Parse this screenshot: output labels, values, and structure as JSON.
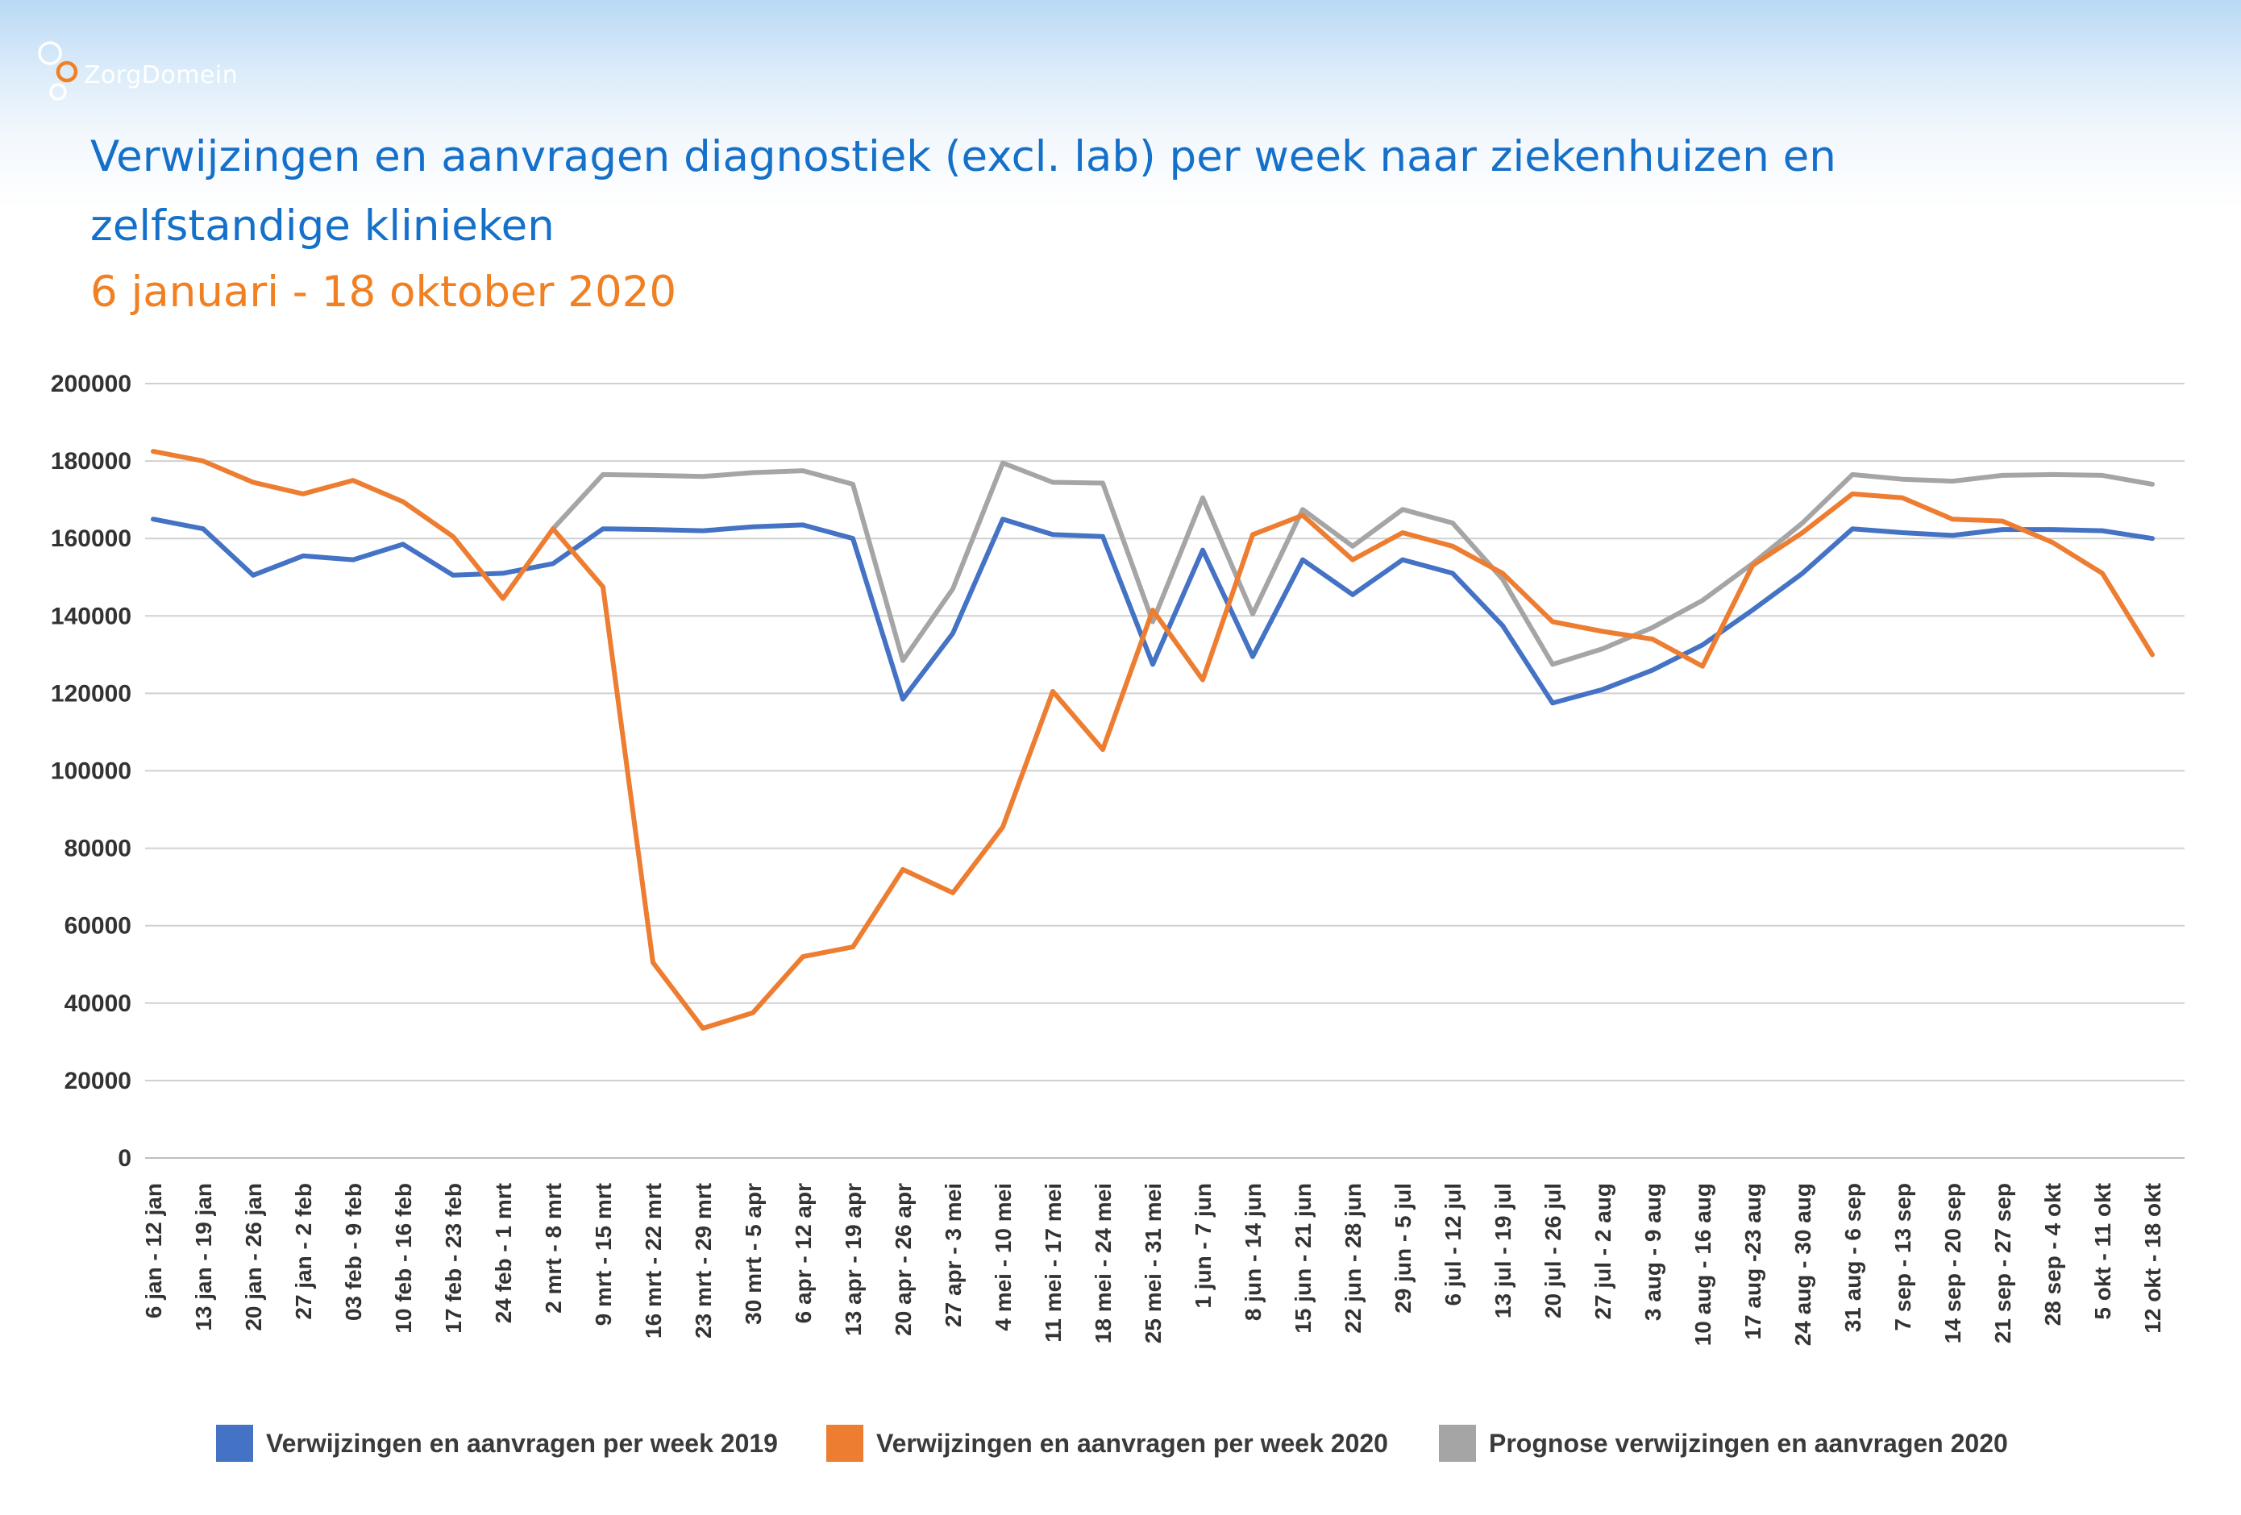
{
  "brand": {
    "name": "ZorgDomein",
    "accent": "#f08021"
  },
  "header": {
    "title_line1": "Verwijzingen en aanvragen diagnostiek (excl. lab) per week naar ziekenhuizen en",
    "title_line2": "zelfstandige klinieken",
    "subtitle": "6 januari - 18 oktober 2020",
    "title_color": "#1570c9",
    "subtitle_color": "#f08021"
  },
  "chart_data": {
    "type": "line",
    "title": "",
    "xlabel": "",
    "ylabel": "",
    "ylim": [
      0,
      200000
    ],
    "yticks": [
      0,
      20000,
      40000,
      60000,
      80000,
      100000,
      120000,
      140000,
      160000,
      180000,
      200000
    ],
    "grid": true,
    "legend_position": "bottom",
    "categories": [
      "6 jan - 12 jan",
      "13 jan - 19 jan",
      "20 jan - 26 jan",
      "27 jan - 2 feb",
      "03 feb - 9 feb",
      "10 feb - 16 feb",
      "17 feb - 23 feb",
      "24 feb - 1 mrt",
      "2 mrt - 8 mrt",
      "9 mrt - 15 mrt",
      "16 mrt - 22 mrt",
      "23 mrt - 29 mrt",
      "30 mrt - 5 apr",
      "6 apr - 12 apr",
      "13 apr - 19 apr",
      "20 apr - 26 apr",
      "27 apr - 3 mei",
      "4 mei - 10 mei",
      "11 mei - 17 mei",
      "18 mei - 24 mei",
      "25 mei - 31 mei",
      "1 jun - 7 jun",
      "8 jun - 14 jun",
      "15 jun - 21 jun",
      "22 jun - 28 jun",
      "29 jun - 5 jul",
      "6 jul - 12 jul",
      "13 jul - 19 jul",
      "20 jul - 26 jul",
      "27 jul - 2 aug",
      "3 aug - 9 aug",
      "10 aug - 16 aug",
      "17 aug -23 aug",
      "24 aug - 30 aug",
      "31 aug - 6 sep",
      "7 sep - 13 sep",
      "14 sep - 20 sep",
      "21 sep - 27 sep",
      "28 sep - 4 okt",
      "5 okt - 11 okt",
      "12 okt - 18 okt"
    ],
    "series": [
      {
        "name": "Verwijzingen en aanvragen per week 2019",
        "color": "#4472c4",
        "values": [
          165000,
          162500,
          150500,
          155500,
          154500,
          158500,
          150500,
          151000,
          153500,
          162500,
          162300,
          162000,
          163000,
          163500,
          160000,
          118500,
          135500,
          165000,
          161000,
          160500,
          127500,
          157000,
          129500,
          154500,
          145500,
          154500,
          151000,
          137500,
          117500,
          121000,
          126000,
          132500,
          141500,
          151000,
          162500,
          161500,
          160800,
          162300,
          162300,
          162000,
          160000
        ]
      },
      {
        "name": "Verwijzingen en aanvragen per week 2020",
        "color": "#ed7d31",
        "values": [
          182500,
          180000,
          174500,
          171500,
          175000,
          169500,
          160500,
          144500,
          162500,
          147500,
          50500,
          33500,
          37500,
          52000,
          54500,
          74500,
          68500,
          85500,
          120500,
          105500,
          141500,
          123500,
          161000,
          166000,
          154500,
          161500,
          158000,
          151000,
          138500,
          136000,
          134000,
          127000,
          153000,
          161500,
          171500,
          170500,
          165000,
          164500,
          159000,
          151000,
          130000
        ]
      },
      {
        "name": "Prognose verwijzingen en aanvragen 2020",
        "color": "#a5a5a5",
        "values": [
          null,
          null,
          null,
          null,
          null,
          null,
          null,
          null,
          162500,
          176500,
          176300,
          176000,
          177000,
          177500,
          174000,
          128500,
          147000,
          179500,
          174500,
          174300,
          138500,
          170500,
          140500,
          167500,
          158000,
          167500,
          164000,
          149500,
          127500,
          131500,
          137000,
          144000,
          153500,
          164000,
          176500,
          175300,
          174800,
          176300,
          176500,
          176300,
          174000
        ]
      }
    ]
  }
}
